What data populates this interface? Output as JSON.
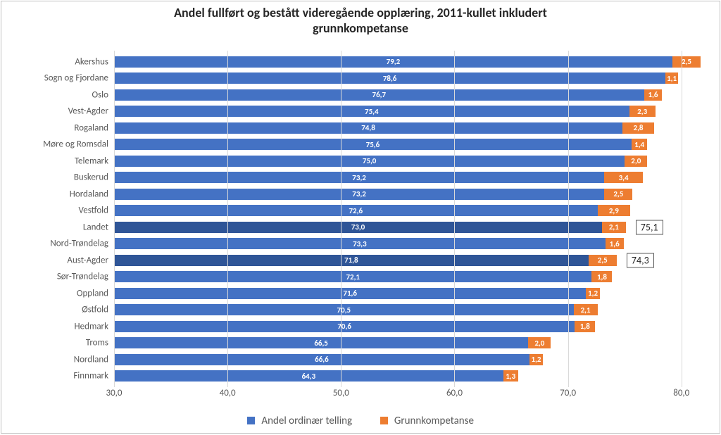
{
  "chart": {
    "type": "stacked-bar-horizontal",
    "title_line1": "Andel fullført og bestått videregående opplæring, 2011-kullet inkludert",
    "title_line2": "grunnkompetanse",
    "title_fontsize": 18,
    "title_color": "#262626",
    "background_color": "#ffffff",
    "frame_border_color": "#bfbfbf",
    "grid_color": "#d9d9d9",
    "axis_label_color": "#595959",
    "category_fontsize": 13,
    "tick_fontsize": 13,
    "bar_value_fontsize": 11,
    "callout_fontsize": 14,
    "legend_fontsize": 15,
    "xmin": 30.0,
    "xmax": 82.0,
    "xticks": [
      30.0,
      40.0,
      50.0,
      60.0,
      70.0,
      80.0
    ],
    "xtick_labels": [
      "30,0",
      "40,0",
      "50,0",
      "60,0",
      "70,0",
      "80,0"
    ],
    "series": [
      {
        "name": "Andel ordinær telling",
        "color": "#4472c4",
        "highlight_color": "#2f5597"
      },
      {
        "name": "Grunnkompetanse",
        "color": "#ed7d31"
      }
    ],
    "categories": [
      {
        "label": "Akershus",
        "v1": 79.2,
        "v2": 2.5,
        "highlight": false
      },
      {
        "label": "Sogn og Fjordane",
        "v1": 78.6,
        "v2": 1.1,
        "highlight": false
      },
      {
        "label": "Oslo",
        "v1": 76.7,
        "v2": 1.6,
        "highlight": false
      },
      {
        "label": "Vest-Agder",
        "v1": 75.4,
        "v2": 2.3,
        "highlight": false
      },
      {
        "label": "Rogaland",
        "v1": 74.8,
        "v2": 2.8,
        "highlight": false
      },
      {
        "label": "Møre og Romsdal",
        "v1": 75.6,
        "v2": 1.4,
        "highlight": false
      },
      {
        "label": "Telemark",
        "v1": 75.0,
        "v2": 2.0,
        "highlight": false
      },
      {
        "label": "Buskerud",
        "v1": 73.2,
        "v2": 3.4,
        "highlight": false
      },
      {
        "label": "Hordaland",
        "v1": 73.2,
        "v2": 2.5,
        "highlight": false
      },
      {
        "label": "Vestfold",
        "v1": 72.6,
        "v2": 2.9,
        "highlight": false
      },
      {
        "label": "Landet",
        "v1": 73.0,
        "v2": 2.1,
        "highlight": true,
        "callout": "75,1"
      },
      {
        "label": "Nord-Trøndelag",
        "v1": 73.3,
        "v2": 1.6,
        "highlight": false
      },
      {
        "label": "Aust-Agder",
        "v1": 71.8,
        "v2": 2.5,
        "highlight": true,
        "callout": "74,3"
      },
      {
        "label": "Sør-Trøndelag",
        "v1": 72.1,
        "v2": 1.8,
        "highlight": false
      },
      {
        "label": "Oppland",
        "v1": 71.6,
        "v2": 1.2,
        "highlight": false
      },
      {
        "label": "Østfold",
        "v1": 70.5,
        "v2": 2.1,
        "highlight": false
      },
      {
        "label": "Hedmark",
        "v1": 70.6,
        "v2": 1.8,
        "highlight": false
      },
      {
        "label": "Troms",
        "v1": 66.5,
        "v2": 2.0,
        "highlight": false
      },
      {
        "label": "Nordland",
        "v1": 66.6,
        "v2": 1.2,
        "highlight": false
      },
      {
        "label": "Finnmark",
        "v1": 64.3,
        "v2": 1.3,
        "highlight": false
      }
    ]
  }
}
